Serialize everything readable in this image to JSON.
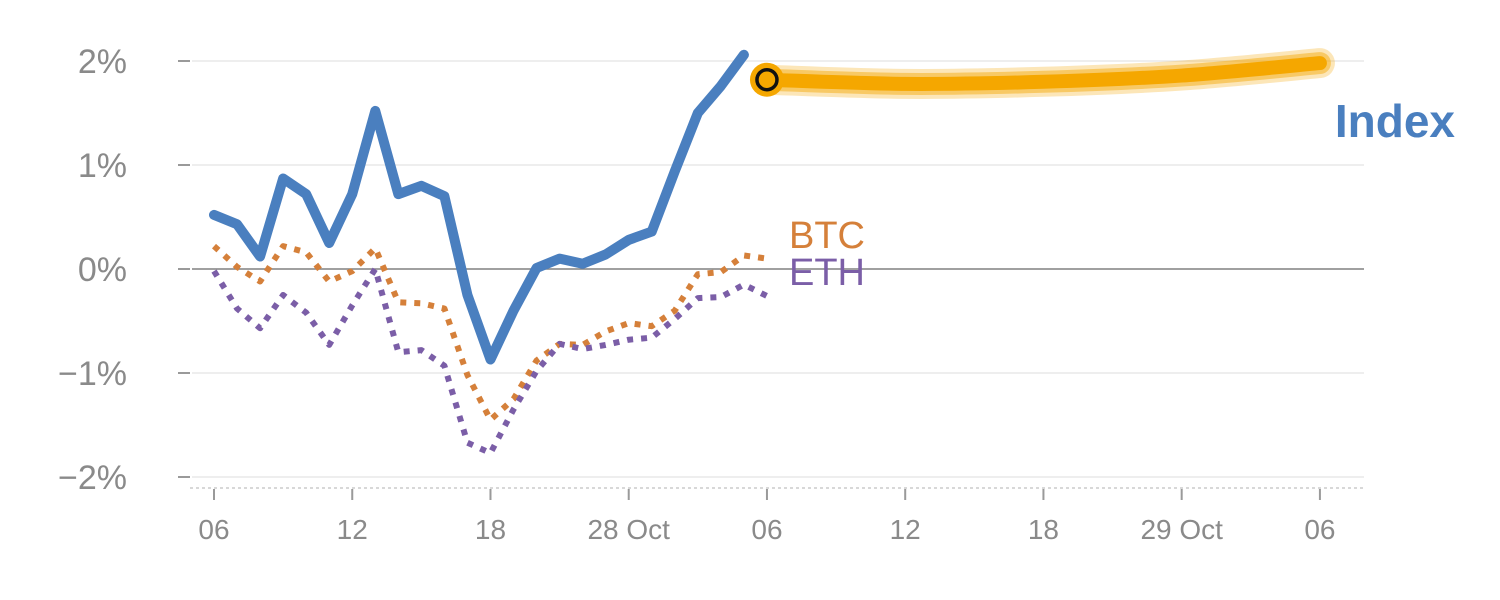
{
  "chart_data": {
    "type": "line",
    "title": "",
    "xlabel": "",
    "ylabel": "",
    "ylim": [
      -2,
      2
    ],
    "y_ticks": [
      {
        "value": 2,
        "label": "2%"
      },
      {
        "value": 1,
        "label": "1%"
      },
      {
        "value": 0,
        "label": "0%"
      },
      {
        "value": -1,
        "label": "−1%"
      },
      {
        "value": -2,
        "label": "−2%"
      }
    ],
    "x_ticks": [
      {
        "pos": 0,
        "label": "06"
      },
      {
        "pos": 6,
        "label": "12"
      },
      {
        "pos": 12,
        "label": "18"
      },
      {
        "pos": 18,
        "label": "28 Oct"
      },
      {
        "pos": 24,
        "label": "06"
      },
      {
        "pos": 30,
        "label": "12"
      },
      {
        "pos": 36,
        "label": "18"
      },
      {
        "pos": 42,
        "label": "29 Oct"
      },
      {
        "pos": 48,
        "label": "06"
      }
    ],
    "grid": true,
    "series": [
      {
        "name": "Index",
        "color": "#4a7fbf",
        "style": "solid",
        "x": [
          0,
          1,
          2,
          3,
          4,
          5,
          6,
          7,
          8,
          9,
          10,
          11,
          12,
          13,
          14,
          15,
          16,
          17,
          18,
          19,
          20,
          21,
          22,
          23
        ],
        "values": [
          0.52,
          0.43,
          0.12,
          0.87,
          0.72,
          0.25,
          0.72,
          1.52,
          0.72,
          0.8,
          0.7,
          -0.25,
          -0.87,
          -0.4,
          0.01,
          0.1,
          0.05,
          0.14,
          0.28,
          0.36,
          0.94,
          1.5,
          1.76,
          2.06
        ]
      },
      {
        "name": "BTC",
        "color": "#d5803a",
        "style": "dotted",
        "x": [
          0,
          1,
          2,
          3,
          4,
          5,
          6,
          7,
          8,
          9,
          10,
          11,
          12,
          13,
          14,
          15,
          16,
          17,
          18,
          19,
          20,
          21,
          22,
          23,
          24
        ],
        "values": [
          0.22,
          0.02,
          -0.12,
          0.22,
          0.16,
          -0.12,
          -0.02,
          0.2,
          -0.32,
          -0.33,
          -0.38,
          -1.02,
          -1.45,
          -1.25,
          -0.88,
          -0.72,
          -0.73,
          -0.6,
          -0.52,
          -0.55,
          -0.4,
          -0.05,
          -0.03,
          0.13,
          0.1
        ]
      },
      {
        "name": "ETH",
        "color": "#7b5ea7",
        "style": "dotted",
        "x": [
          0,
          1,
          2,
          3,
          4,
          5,
          6,
          7,
          8,
          9,
          10,
          11,
          12,
          13,
          14,
          15,
          16,
          17,
          18,
          19,
          20,
          21,
          22,
          23,
          24
        ],
        "values": [
          -0.02,
          -0.38,
          -0.57,
          -0.25,
          -0.42,
          -0.73,
          -0.35,
          0.0,
          -0.8,
          -0.78,
          -0.93,
          -1.67,
          -1.77,
          -1.35,
          -0.98,
          -0.72,
          -0.77,
          -0.73,
          -0.68,
          -0.66,
          -0.48,
          -0.28,
          -0.27,
          -0.15,
          -0.26
        ]
      },
      {
        "name": "Index forecast",
        "color": "#f5a700",
        "style": "band",
        "x": [
          24,
          30,
          36,
          42,
          48
        ],
        "values": [
          1.82,
          1.78,
          1.8,
          1.86,
          1.98
        ]
      }
    ],
    "labels": {
      "index": "Index",
      "btc": "BTC",
      "eth": "ETH"
    },
    "marker": {
      "x": 24,
      "value": 1.82,
      "fill": "#f5a700",
      "stroke": "#111111"
    },
    "colors": {
      "grid": "#e4e4e4",
      "zero_line": "#808080",
      "tick_text": "#8a8a8a"
    }
  }
}
